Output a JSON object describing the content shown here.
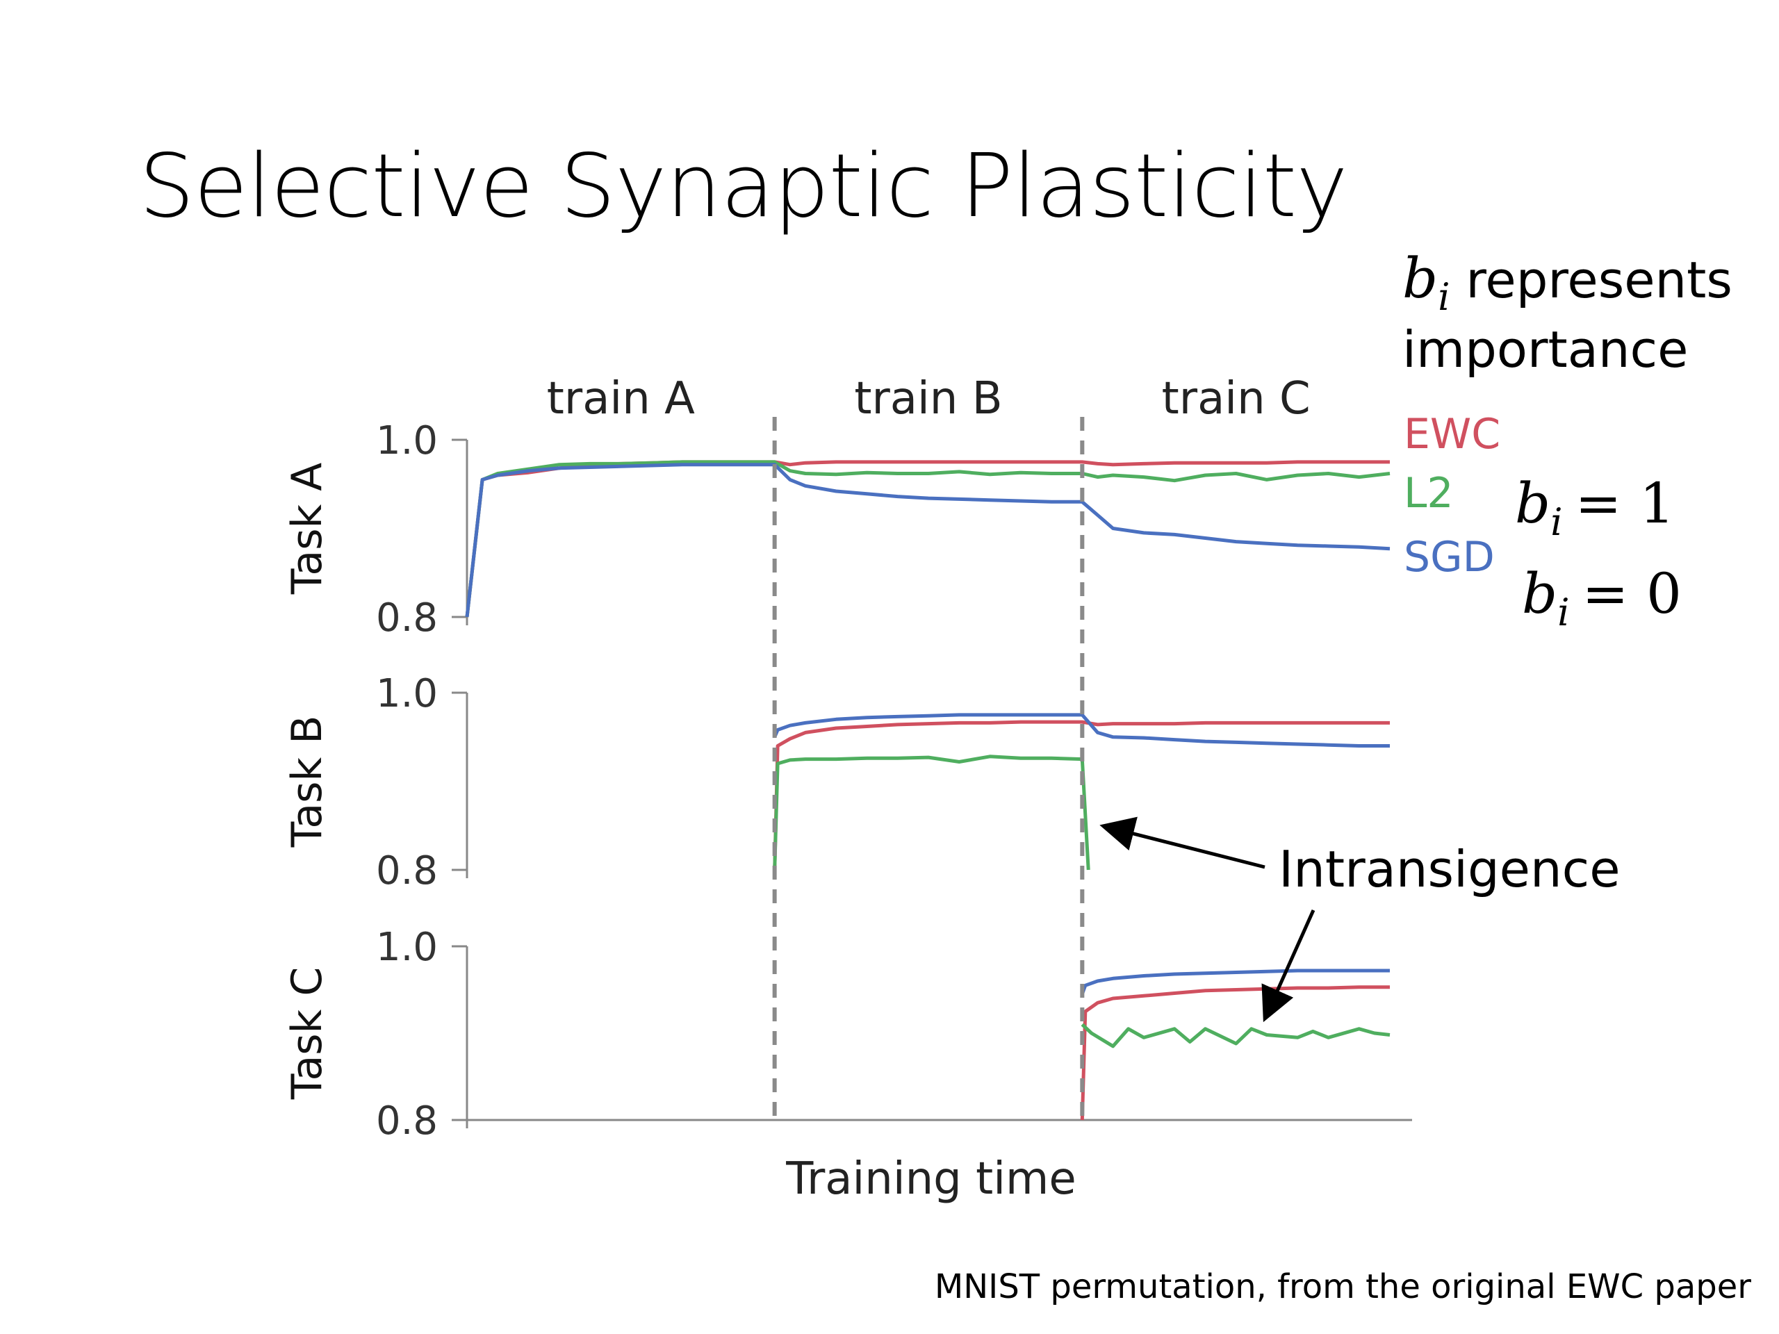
{
  "slide": {
    "title": "Selective Synaptic Plasticity",
    "caption": "MNIST permutation, from the original EWC paper"
  },
  "side_note": {
    "symbol": "b",
    "subscript": "i",
    "line1_rest": " represents",
    "line2": "importance"
  },
  "equations": [
    {
      "symbol": "b",
      "subscript": "i",
      "rhs": "= 1",
      "applies_to": "EWC, L2"
    },
    {
      "symbol": "b",
      "subscript": "i",
      "rhs": "= 0",
      "applies_to": "SGD"
    }
  ],
  "annotation": {
    "text": "Intransigence"
  },
  "colors": {
    "EWC": "#d0505f",
    "L2": "#4fae5f",
    "SGD": "#4a70c0",
    "axis": "#888888",
    "divider": "#8a8a8a"
  },
  "chart_data": {
    "type": "line",
    "xlabel": "Training time",
    "x_range": [
      0,
      30
    ],
    "phases": [
      {
        "label": "train A",
        "start": 0,
        "end": 10
      },
      {
        "label": "train B",
        "start": 10,
        "end": 20
      },
      {
        "label": "train C",
        "start": 20,
        "end": 30
      }
    ],
    "legend": [
      "EWC",
      "L2",
      "SGD"
    ],
    "panels": [
      {
        "ylabel": "Task A",
        "ylim": [
          0.8,
          1.0
        ],
        "yticks": [
          "1.0",
          "0.8"
        ],
        "series": [
          {
            "name": "EWC",
            "x": [
              0,
              0.5,
              1,
              2,
              3,
              4,
              5,
              6,
              7,
              8,
              9,
              10,
              10.5,
              11,
              12,
              13,
              14,
              15,
              16,
              17,
              18,
              19,
              20,
              20.5,
              21,
              22,
              23,
              24,
              25,
              26,
              27,
              28,
              29,
              30
            ],
            "y": [
              0.8,
              0.955,
              0.96,
              0.963,
              0.968,
              0.972,
              0.973,
              0.974,
              0.975,
              0.975,
              0.975,
              0.975,
              0.972,
              0.974,
              0.975,
              0.975,
              0.975,
              0.975,
              0.975,
              0.975,
              0.975,
              0.975,
              0.975,
              0.973,
              0.972,
              0.973,
              0.974,
              0.974,
              0.974,
              0.974,
              0.975,
              0.975,
              0.975,
              0.975
            ]
          },
          {
            "name": "L2",
            "x": [
              0,
              0.5,
              1,
              2,
              3,
              4,
              5,
              6,
              7,
              8,
              9,
              10,
              10.5,
              11,
              12,
              13,
              14,
              15,
              16,
              17,
              18,
              19,
              20,
              20.5,
              21,
              22,
              23,
              24,
              25,
              26,
              27,
              28,
              29,
              30
            ],
            "y": [
              0.8,
              0.955,
              0.962,
              0.967,
              0.972,
              0.973,
              0.973,
              0.974,
              0.975,
              0.975,
              0.975,
              0.975,
              0.965,
              0.962,
              0.961,
              0.963,
              0.962,
              0.962,
              0.964,
              0.961,
              0.963,
              0.962,
              0.962,
              0.958,
              0.96,
              0.958,
              0.954,
              0.96,
              0.962,
              0.955,
              0.96,
              0.962,
              0.958,
              0.962
            ]
          },
          {
            "name": "SGD",
            "x": [
              0,
              0.5,
              1,
              2,
              3,
              4,
              5,
              6,
              7,
              8,
              9,
              10,
              10.5,
              11,
              12,
              13,
              14,
              15,
              16,
              17,
              18,
              19,
              20,
              20.5,
              21,
              22,
              23,
              24,
              25,
              26,
              27,
              28,
              29,
              30
            ],
            "y": [
              0.8,
              0.955,
              0.96,
              0.965,
              0.968,
              0.969,
              0.97,
              0.971,
              0.972,
              0.972,
              0.972,
              0.972,
              0.955,
              0.948,
              0.942,
              0.939,
              0.936,
              0.934,
              0.933,
              0.932,
              0.931,
              0.93,
              0.93,
              0.915,
              0.9,
              0.895,
              0.893,
              0.889,
              0.885,
              0.883,
              0.881,
              0.88,
              0.879,
              0.877
            ]
          }
        ]
      },
      {
        "ylabel": "Task B",
        "ylim": [
          0.8,
          1.0
        ],
        "yticks": [
          "1.0",
          "0.8"
        ],
        "series": [
          {
            "name": "EWC",
            "x": [
              10,
              10.1,
              10.5,
              11,
              12,
              13,
              14,
              15,
              16,
              17,
              18,
              19,
              20,
              20.5,
              21,
              22,
              23,
              24,
              25,
              26,
              27,
              28,
              29,
              30
            ],
            "y": [
              0.8,
              0.94,
              0.948,
              0.955,
              0.96,
              0.962,
              0.964,
              0.965,
              0.966,
              0.966,
              0.967,
              0.967,
              0.967,
              0.964,
              0.965,
              0.965,
              0.965,
              0.966,
              0.966,
              0.966,
              0.966,
              0.966,
              0.966,
              0.966
            ]
          },
          {
            "name": "L2",
            "x": [
              10,
              10.1,
              10.5,
              11,
              12,
              13,
              14,
              15,
              16,
              17,
              18,
              19,
              20,
              20.2
            ],
            "y": [
              0.8,
              0.92,
              0.924,
              0.925,
              0.925,
              0.926,
              0.926,
              0.927,
              0.922,
              0.928,
              0.926,
              0.926,
              0.925,
              0.8
            ]
          },
          {
            "name": "SGD",
            "x": [
              10,
              10.1,
              10.5,
              11,
              12,
              13,
              14,
              15,
              16,
              17,
              18,
              19,
              20,
              20.5,
              21,
              22,
              23,
              24,
              25,
              26,
              27,
              28,
              29,
              30
            ],
            "y": [
              0.95,
              0.958,
              0.963,
              0.966,
              0.97,
              0.972,
              0.973,
              0.974,
              0.975,
              0.975,
              0.975,
              0.975,
              0.975,
              0.955,
              0.95,
              0.949,
              0.947,
              0.945,
              0.944,
              0.943,
              0.942,
              0.941,
              0.94,
              0.94
            ]
          }
        ]
      },
      {
        "ylabel": "Task C",
        "ylim": [
          0.8,
          1.0
        ],
        "yticks": [
          "1.0",
          "0.8"
        ],
        "series": [
          {
            "name": "EWC",
            "x": [
              20,
              20.1,
              20.5,
              21,
              22,
              23,
              24,
              25,
              26,
              27,
              28,
              29,
              30
            ],
            "y": [
              0.8,
              0.925,
              0.935,
              0.94,
              0.943,
              0.946,
              0.949,
              0.95,
              0.951,
              0.952,
              0.952,
              0.953,
              0.953
            ]
          },
          {
            "name": "L2",
            "x": [
              20,
              20.3,
              21,
              21.5,
              22,
              23,
              23.5,
              24,
              25,
              25.5,
              26,
              27,
              27.5,
              28,
              29,
              29.5,
              30
            ],
            "y": [
              0.91,
              0.9,
              0.885,
              0.905,
              0.895,
              0.905,
              0.89,
              0.905,
              0.888,
              0.905,
              0.898,
              0.895,
              0.902,
              0.895,
              0.905,
              0.9,
              0.898
            ]
          },
          {
            "name": "SGD",
            "x": [
              20,
              20.1,
              20.5,
              21,
              22,
              23,
              24,
              25,
              26,
              27,
              28,
              29,
              30
            ],
            "y": [
              0.945,
              0.955,
              0.96,
              0.963,
              0.966,
              0.968,
              0.969,
              0.97,
              0.971,
              0.972,
              0.972,
              0.972,
              0.972
            ]
          }
        ]
      }
    ]
  }
}
